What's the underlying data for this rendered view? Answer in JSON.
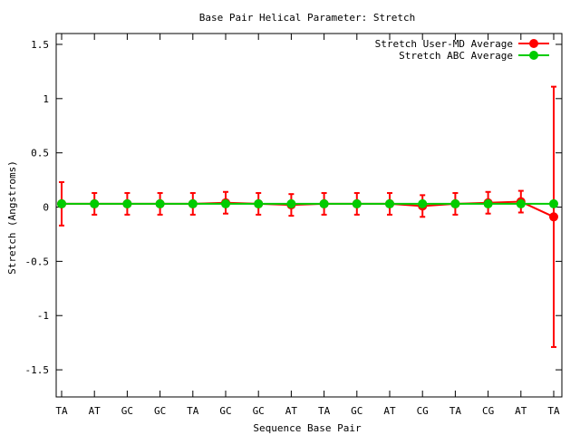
{
  "chart_data": {
    "type": "line",
    "title": "Base Pair Helical Parameter: Stretch",
    "xlabel": "Sequence Base Pair",
    "ylabel": "Stretch (Angstroms)",
    "ylim": [
      -1.75,
      1.6
    ],
    "yticks": [
      1.5,
      1,
      0.5,
      0,
      -0.5,
      -1,
      -1.5
    ],
    "ytick_labels": [
      "1.5",
      "1",
      "0.5",
      "0",
      "-0.5",
      "-1",
      "-1.5"
    ],
    "categories": [
      "TA",
      "AT",
      "GC",
      "GC",
      "TA",
      "GC",
      "GC",
      "AT",
      "TA",
      "GC",
      "AT",
      "CG",
      "TA",
      "CG",
      "AT",
      "TA"
    ],
    "legend_position": "top-right",
    "grid": false,
    "series": [
      {
        "name": "Stretch User-MD Average",
        "color": "#ff0000",
        "values": [
          0.03,
          0.03,
          0.03,
          0.03,
          0.03,
          0.04,
          0.03,
          0.02,
          0.03,
          0.03,
          0.03,
          0.01,
          0.03,
          0.04,
          0.05,
          -0.09
        ],
        "error": [
          0.2,
          0.1,
          0.1,
          0.1,
          0.1,
          0.1,
          0.1,
          0.1,
          0.1,
          0.1,
          0.1,
          0.1,
          0.1,
          0.1,
          0.1,
          1.2
        ]
      },
      {
        "name": "Stretch ABC Average",
        "color": "#00cc00",
        "values": [
          0.03,
          0.03,
          0.03,
          0.03,
          0.03,
          0.03,
          0.03,
          0.03,
          0.03,
          0.03,
          0.03,
          0.03,
          0.03,
          0.03,
          0.03,
          0.03
        ]
      }
    ]
  }
}
